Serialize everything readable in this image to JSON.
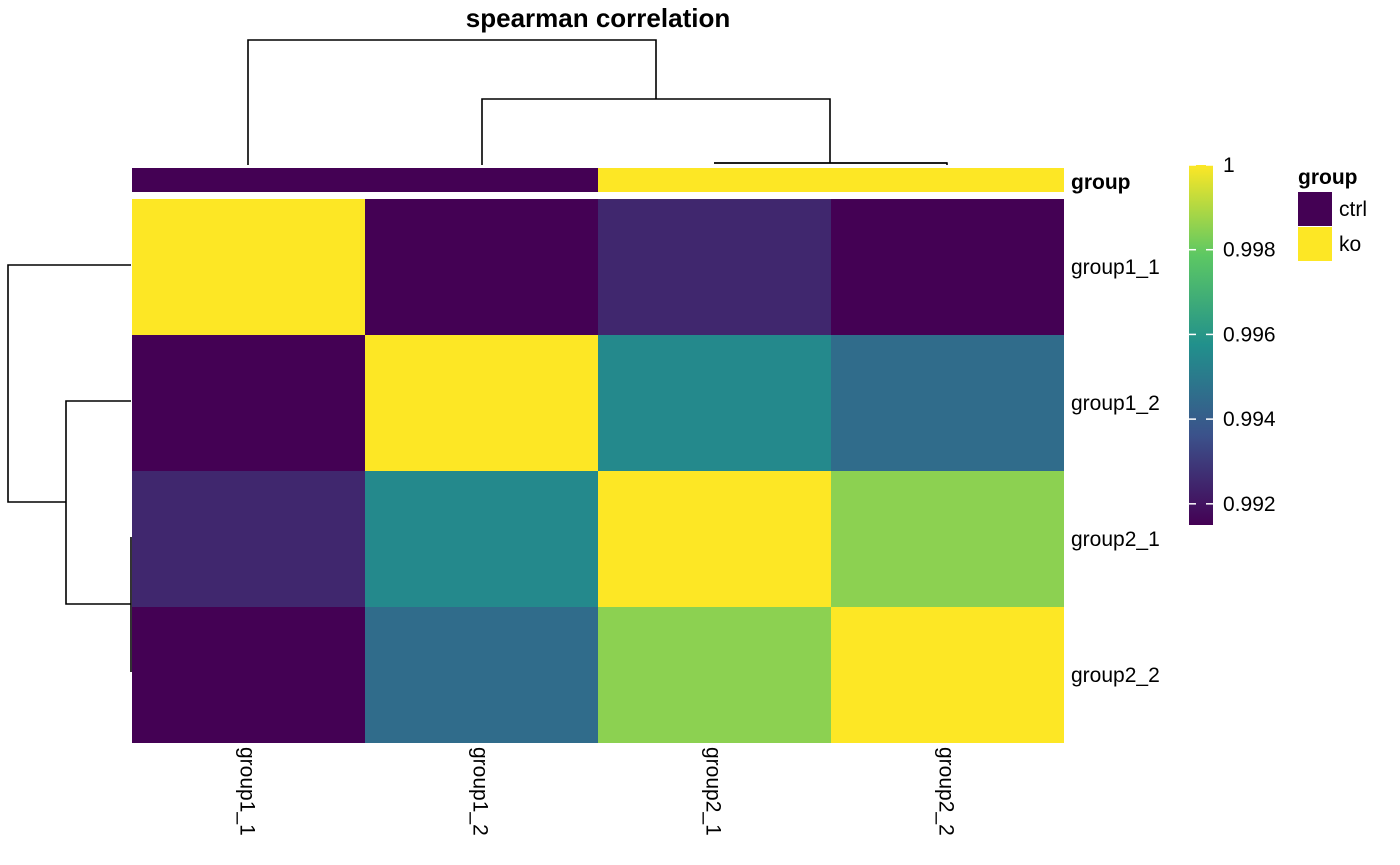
{
  "chart_data": {
    "type": "heatmap",
    "title": "spearman correlation",
    "rows": [
      "group1_1",
      "group1_2",
      "group2_1",
      "group2_2"
    ],
    "columns": [
      "group1_1",
      "group1_2",
      "group2_1",
      "group2_2"
    ],
    "values": [
      [
        1.0,
        0.9915,
        0.9925,
        0.9915
      ],
      [
        0.9915,
        1.0,
        0.9955,
        0.9945
      ],
      [
        0.9925,
        0.9955,
        1.0,
        0.9985
      ],
      [
        0.9915,
        0.9945,
        0.9985,
        1.0
      ]
    ],
    "color_scale": {
      "min": 0.9915,
      "max": 1.0,
      "stops": [
        "#440154",
        "#3b528b",
        "#21908c",
        "#5dc863",
        "#fde725"
      ]
    },
    "colorbar": {
      "ticks": [
        {
          "value": 1.0,
          "label": "1"
        },
        {
          "value": 0.998,
          "label": "0.998"
        },
        {
          "value": 0.996,
          "label": "0.996"
        },
        {
          "value": 0.994,
          "label": "0.994"
        },
        {
          "value": 0.992,
          "label": "0.992"
        }
      ]
    },
    "column_annotation": {
      "name": "group",
      "values": [
        "ctrl",
        "ctrl",
        "ko",
        "ko"
      ]
    },
    "annotation_legend": {
      "title": "group",
      "entries": [
        {
          "label": "ctrl",
          "color": "#440154"
        },
        {
          "label": "ko",
          "color": "#fde725"
        }
      ]
    },
    "row_dendrogram": true,
    "column_dendrogram": true
  }
}
